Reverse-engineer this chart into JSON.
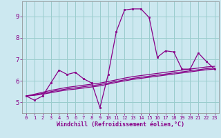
{
  "xlabel": "Windchill (Refroidissement éolien,°C)",
  "xlim": [
    -0.5,
    23.5
  ],
  "ylim": [
    4.5,
    9.7
  ],
  "yticks": [
    5,
    6,
    7,
    8,
    9
  ],
  "xticks": [
    0,
    1,
    2,
    3,
    4,
    5,
    6,
    7,
    8,
    9,
    10,
    11,
    12,
    13,
    14,
    15,
    16,
    17,
    18,
    19,
    20,
    21,
    22,
    23
  ],
  "bg_color": "#cce8f0",
  "line_color": "#880088",
  "grid_color": "#99cccc",
  "main_y": [
    5.3,
    5.1,
    5.3,
    5.9,
    6.5,
    6.3,
    6.4,
    6.1,
    5.9,
    4.75,
    6.3,
    8.3,
    9.3,
    9.35,
    9.35,
    8.95,
    7.1,
    7.4,
    7.35,
    6.55,
    6.55,
    7.3,
    6.9,
    6.55
  ],
  "trend1_y": [
    5.3,
    5.33,
    5.38,
    5.45,
    5.52,
    5.58,
    5.62,
    5.67,
    5.72,
    5.77,
    5.85,
    5.93,
    6.0,
    6.07,
    6.12,
    6.17,
    6.22,
    6.27,
    6.32,
    6.37,
    6.42,
    6.47,
    6.52,
    6.55
  ],
  "trend2_y": [
    5.3,
    5.35,
    5.42,
    5.5,
    5.57,
    5.63,
    5.68,
    5.73,
    5.78,
    5.83,
    5.9,
    5.98,
    6.05,
    6.12,
    6.17,
    6.22,
    6.27,
    6.32,
    6.37,
    6.42,
    6.47,
    6.52,
    6.57,
    6.6
  ],
  "trend3_y": [
    5.3,
    5.38,
    5.47,
    5.56,
    5.63,
    5.7,
    5.75,
    5.8,
    5.85,
    5.9,
    5.97,
    6.05,
    6.13,
    6.2,
    6.25,
    6.3,
    6.35,
    6.4,
    6.45,
    6.5,
    6.55,
    6.6,
    6.65,
    6.68
  ]
}
